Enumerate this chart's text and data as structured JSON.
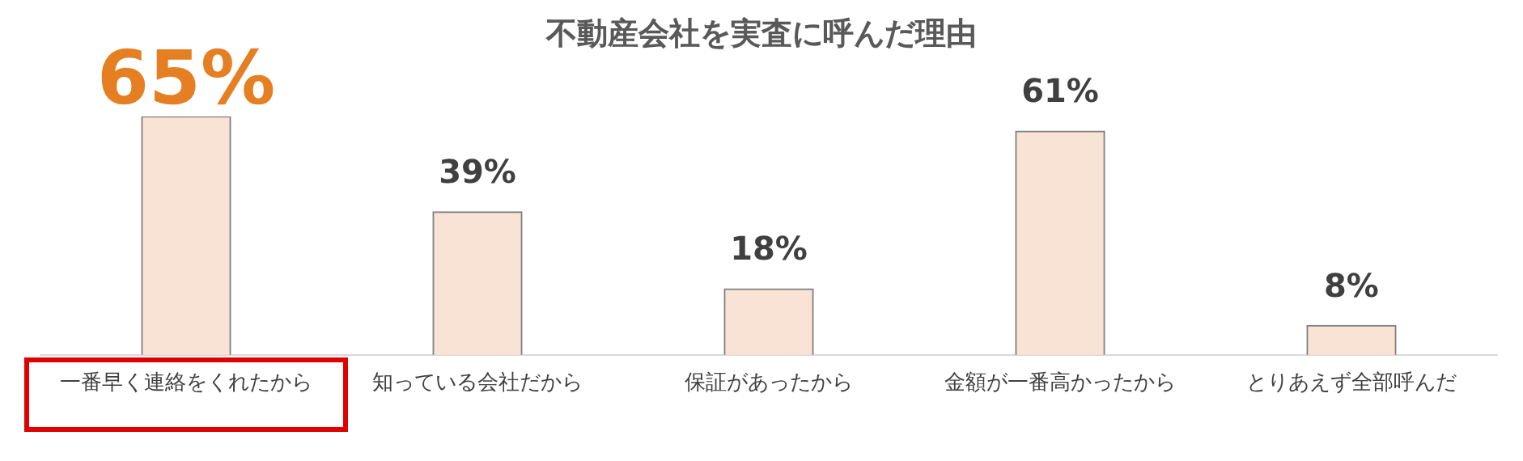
{
  "chart_data": {
    "type": "bar",
    "title": "不動産会社を実査に呼んだ理由",
    "categories": [
      "一番早く連絡をくれたから",
      "知っている会社だから",
      "保証があったから",
      "金額が一番高かったから",
      "とりあえず全部呼んだ"
    ],
    "values": [
      65,
      39,
      18,
      61,
      8
    ],
    "value_labels": [
      "65%",
      "39%",
      "18%",
      "61%",
      "8%"
    ],
    "color": "#f8e3d5",
    "legend": false,
    "grid": false
  }
}
